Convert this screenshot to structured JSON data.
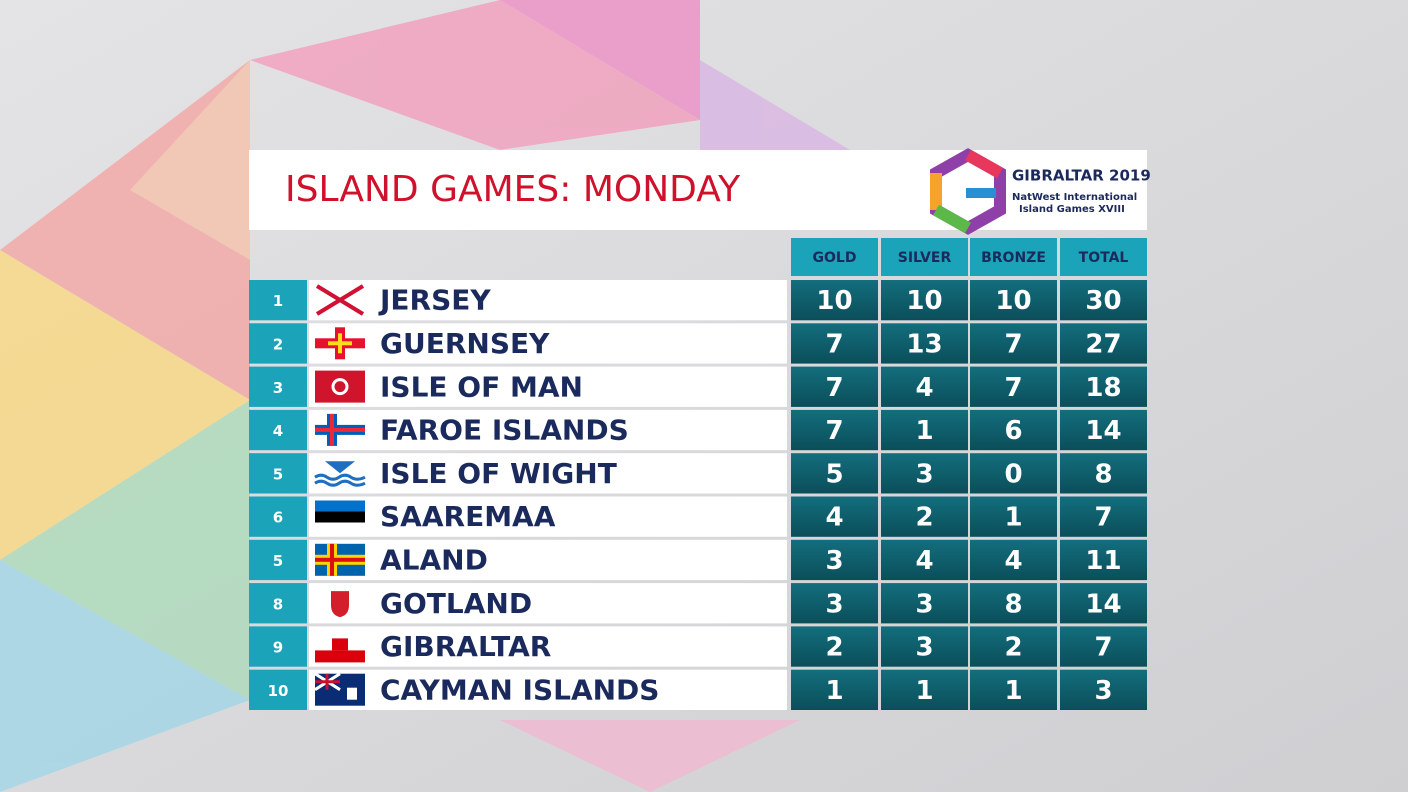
{
  "header": {
    "title": "ISLAND GAMES: MONDAY",
    "logo_title": "GIBRALTAR 2019",
    "logo_line1": "NatWest International",
    "logo_line2": "Island Games XVIII"
  },
  "table": {
    "columns": [
      "GOLD",
      "SILVER",
      "BRONZE",
      "TOTAL"
    ],
    "rows": [
      [
        1,
        "JERSEY",
        10,
        10,
        10,
        30
      ],
      [
        2,
        "GUERNSEY",
        7,
        13,
        7,
        27
      ],
      [
        3,
        "ISLE OF MAN",
        7,
        4,
        7,
        18
      ],
      [
        4,
        "FAROE ISLANDS",
        7,
        1,
        6,
        14
      ],
      [
        5,
        "ISLE OF WIGHT",
        5,
        3,
        0,
        8
      ],
      [
        6,
        "SAAREMAA",
        4,
        2,
        1,
        7
      ],
      [
        5,
        "ALAND",
        3,
        4,
        4,
        11
      ],
      [
        8,
        "GOTLAND",
        3,
        3,
        8,
        14
      ],
      [
        9,
        "GIBRALTAR",
        2,
        3,
        2,
        7
      ],
      [
        10,
        "CAYMAN ISLANDS",
        1,
        1,
        1,
        3
      ]
    ]
  }
}
